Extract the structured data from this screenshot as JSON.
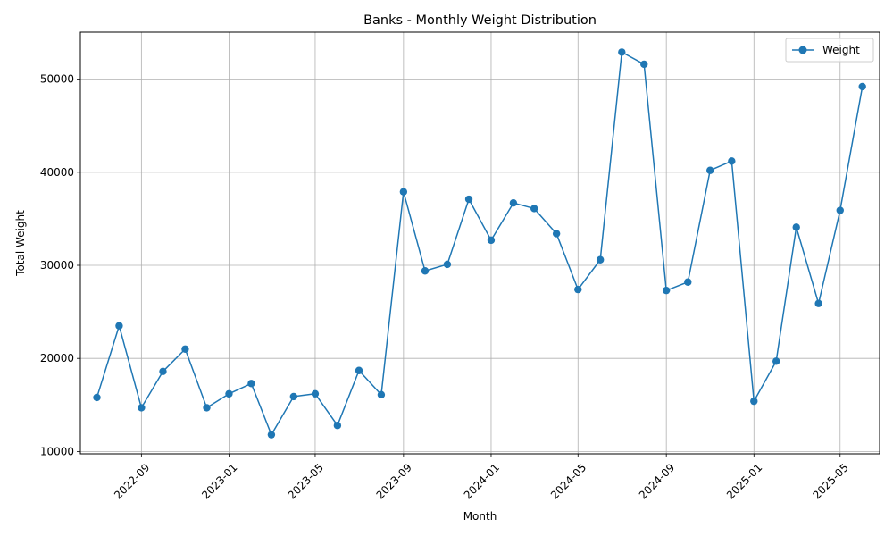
{
  "chart_data": {
    "type": "line",
    "title": "Banks - Monthly Weight Distribution",
    "xlabel": "Month",
    "ylabel": "Total Weight",
    "x": [
      "2022-07",
      "2022-08",
      "2022-09",
      "2022-10",
      "2022-11",
      "2022-12",
      "2023-01",
      "2023-02",
      "2023-03",
      "2023-04",
      "2023-05",
      "2023-06",
      "2023-07",
      "2023-08",
      "2023-09",
      "2023-10",
      "2023-11",
      "2023-12",
      "2024-01",
      "2024-02",
      "2024-03",
      "2024-04",
      "2024-05",
      "2024-06",
      "2024-07",
      "2024-08",
      "2024-09",
      "2024-10",
      "2024-11",
      "2024-12",
      "2025-01",
      "2025-02",
      "2025-03",
      "2025-04",
      "2025-05",
      "2025-06"
    ],
    "series": [
      {
        "name": "Weight",
        "values": [
          15800,
          23500,
          14700,
          18600,
          21000,
          14700,
          16200,
          17300,
          11800,
          15900,
          16200,
          12800,
          18700,
          16100,
          37900,
          29400,
          30100,
          37100,
          32700,
          36700,
          36100,
          33400,
          27400,
          30600,
          52900,
          51600,
          27300,
          28200,
          40200,
          41200,
          15400,
          19700,
          34100,
          25900,
          35900,
          49200
        ]
      }
    ],
    "x_ticks": [
      "2022-09",
      "2023-01",
      "2023-05",
      "2023-09",
      "2024-01",
      "2024-05",
      "2024-09",
      "2025-01",
      "2025-05"
    ],
    "y_ticks": [
      10000,
      20000,
      30000,
      40000,
      50000
    ],
    "xlim": [
      "2022-06-08",
      "2025-06-25"
    ],
    "ylim": [
      9750,
      55050
    ],
    "grid": true,
    "legend_position": "top-right",
    "colors": {
      "series": "#1f77b4",
      "grid": "#b0b0b0",
      "axes": "#000000"
    }
  }
}
